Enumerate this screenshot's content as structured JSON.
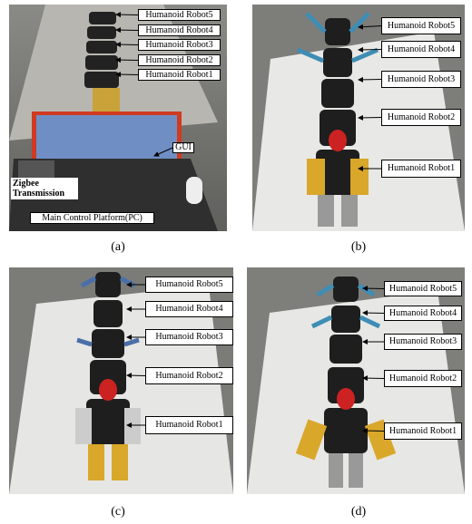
{
  "panels": [
    {
      "caption": "(a)",
      "labels": [
        "Humanoid Robot5",
        "Humanoid Robot4",
        "Humanoid Robot3",
        "Humanoid Robot2",
        "Humanoid Robot1",
        "GUI",
        "Zigbee Transmission",
        "Main Control Platform(PC)"
      ]
    },
    {
      "caption": "(b)",
      "labels": [
        "Humanoid Robot5",
        "Humanoid Robot4",
        "Humanoid Robot3",
        "Humanoid Robot2",
        "Humanoid Robot1"
      ]
    },
    {
      "caption": "(c)",
      "labels": [
        "Humanoid Robot5",
        "Humanoid Robot4",
        "Humanoid Robot3",
        "Humanoid Robot2",
        "Humanoid Robot1"
      ]
    },
    {
      "caption": "(d)",
      "labels": [
        "Humanoid Robot5",
        "Humanoid Robot4",
        "Humanoid Robot3",
        "Humanoid Robot2",
        "Humanoid Robot1"
      ]
    }
  ]
}
